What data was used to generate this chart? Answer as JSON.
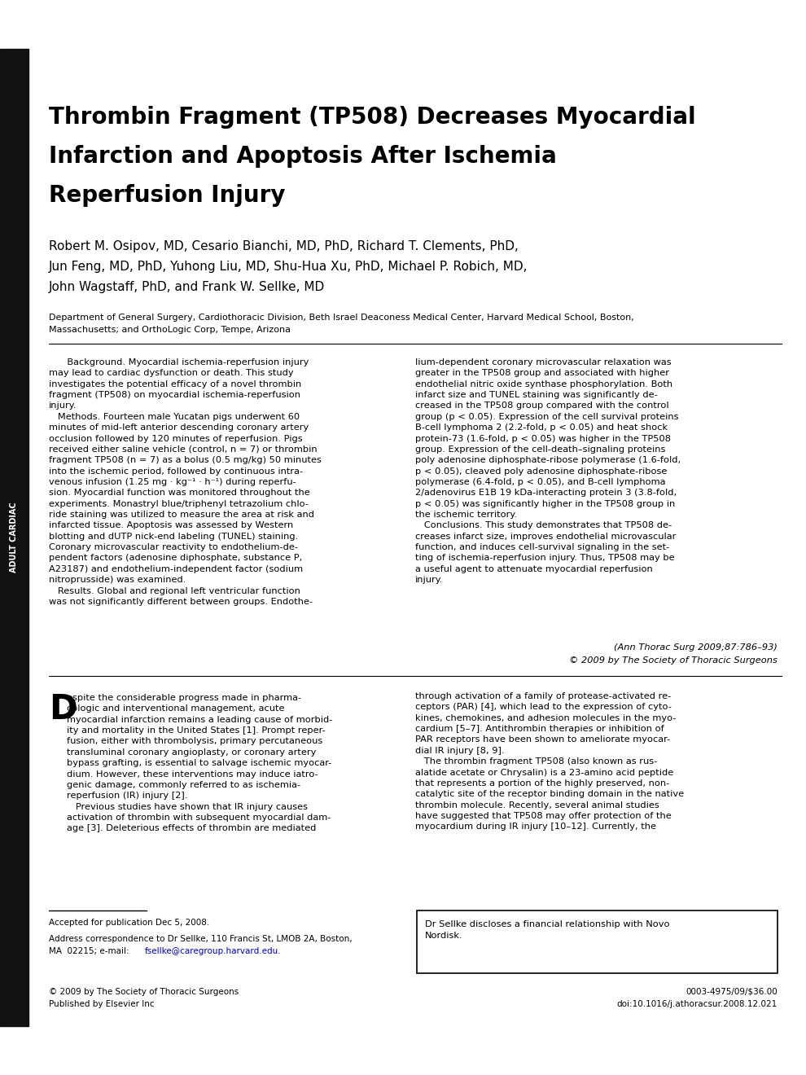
{
  "bg_color": "#ffffff",
  "sidebar_color": "#111111",
  "sidebar_text": "ADULT CARDIAC",
  "title_line1": "Thrombin Fragment (TP508) Decreases Myocardial",
  "title_line2": "Infarction and Apoptosis After Ischemia",
  "title_line3": "Reperfusion Injury",
  "authors_line1": "Robert M. Osipov, MD, Cesario Bianchi, MD, PhD, Richard T. Clements, PhD,",
  "authors_line2": "Jun Feng, MD, PhD, Yuhong Liu, MD, Shu-Hua Xu, PhD, Michael P. Robich, MD,",
  "authors_line3": "John Wagstaff, PhD, and Frank W. Sellke, MD",
  "affiliation_line1": "Department of General Surgery, Cardiothoracic Division, Beth Israel Deaconess Medical Center, Harvard Medical School, Boston,",
  "affiliation_line2": "Massachusetts; and OrthoLogic Corp, Tempe, Arizona",
  "abstract_bg": "#f0f0f0",
  "footnote_accepted": "Accepted for publication Dec 5, 2008.",
  "footnote_addr1": "Address correspondence to Dr Sellke, 110 Francis St, LMOB 2A, Boston,",
  "footnote_addr2": "MA  02215; e-mail: ",
  "footnote_email": "fsellke@caregroup.harvard.edu.",
  "footnote_email_color": "#0000cc",
  "disclosure_text": "Dr Sellke discloses a financial relationship with Novo\nNordisk.",
  "copyright_left1": "© 2009 by The Society of Thoracic Surgeons",
  "copyright_left2": "Published by Elsevier Inc",
  "copyright_right1": "0003-4975/09/$36.00",
  "copyright_right2": "doi:10.1016/j.athoracsur.2008.12.021"
}
